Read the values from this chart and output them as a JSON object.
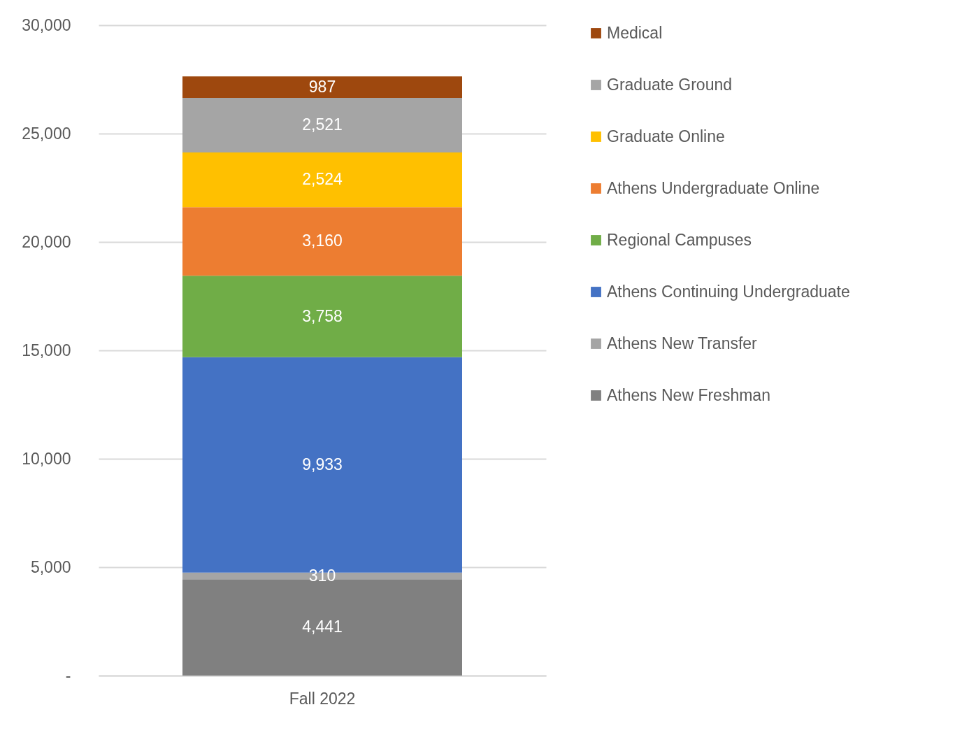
{
  "chart_data": {
    "type": "bar",
    "stacked": true,
    "categories": [
      "Fall 2022"
    ],
    "series": [
      {
        "name": "Athens New Freshman",
        "color": "#808080",
        "values": [
          4441
        ],
        "value_labels": [
          "4,441"
        ]
      },
      {
        "name": "Athens New Transfer",
        "color": "#a5a5a5",
        "values": [
          310
        ],
        "value_labels": [
          "310"
        ]
      },
      {
        "name": "Athens Continuing Undergraduate",
        "color": "#4472c4",
        "values": [
          9933
        ],
        "value_labels": [
          "9,933"
        ]
      },
      {
        "name": "Regional Campuses",
        "color": "#70ad47",
        "values": [
          3758
        ],
        "value_labels": [
          "3,758"
        ]
      },
      {
        "name": "Athens Undergraduate Online",
        "color": "#ed7d31",
        "values": [
          3160
        ],
        "value_labels": [
          "3,160"
        ]
      },
      {
        "name": "Graduate Online",
        "color": "#ffc000",
        "values": [
          2524
        ],
        "value_labels": [
          "2,524"
        ]
      },
      {
        "name": "Graduate Ground",
        "color": "#a5a5a5",
        "values": [
          2521
        ],
        "value_labels": [
          "2,521"
        ]
      },
      {
        "name": "Medical",
        "color": "#9e480e",
        "values": [
          987
        ],
        "value_labels": [
          "987"
        ]
      }
    ],
    "ylim": [
      0,
      30000
    ],
    "yticks": [
      {
        "value": 0,
        "label": "-"
      },
      {
        "value": 5000,
        "label": "5,000"
      },
      {
        "value": 10000,
        "label": "10,000"
      },
      {
        "value": 15000,
        "label": "15,000"
      },
      {
        "value": 20000,
        "label": "20,000"
      },
      {
        "value": 25000,
        "label": "25,000"
      },
      {
        "value": 30000,
        "label": "30,000"
      }
    ],
    "grid": "y",
    "legend": "right"
  }
}
